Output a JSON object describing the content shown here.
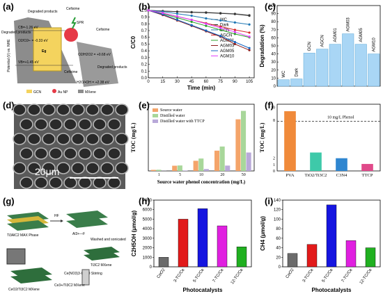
{
  "panels": {
    "a": {
      "letter": "(a)",
      "ylabel": "Potential (V) vs. NHE",
      "labels": [
        "Degraded products",
        "Cefixime",
        "SPR",
        "Cefixime",
        "Degraded products",
        "CB=-1.26 eV",
        "O2/O2•- = -0.33 eV",
        "Eg",
        "VB=+1.45 eV",
        "O2/H2O2 = +0.68 eV",
        "H2O/•OH = +2.38 eV",
        "Cefixime",
        "Degraded products"
      ],
      "legend": [
        "GCN",
        "Au NP",
        "MXene"
      ],
      "colors": {
        "gcn": "#f4d35e",
        "au": "#e63946",
        "mxene": "#9a9a9a"
      }
    },
    "b": {
      "letter": "(b)"
    },
    "c": {
      "letter": "(c)"
    },
    "d": {
      "letter": "(d)",
      "scale": "20μm"
    },
    "e": {
      "letter": "(e)"
    },
    "f": {
      "letter": "(f)",
      "threshold_label": "10 mg/L Phenol"
    },
    "g": {
      "letter": "(g)",
      "labels": [
        "Ti3AlC2 MAX Phase",
        "HF",
        "Al3+—F",
        "Washed and sonicated",
        "Ti3C2 MXene",
        "Ce(NO3)3·6H2O Stirring",
        "Ce3+/Ti3C2 MXene",
        "CeO2/Ti3C2 MXene"
      ]
    },
    "h": {
      "letter": "(h)"
    },
    "i": {
      "letter": "(i)"
    }
  },
  "chart_data": [
    {
      "id": "b",
      "type": "line",
      "xlabel": "Time (min)",
      "ylabel": "C/C0",
      "x": [
        0,
        15,
        30,
        45,
        60,
        75,
        90,
        105
      ],
      "xlim": [
        0,
        110
      ],
      "ylim": [
        0,
        1.05
      ],
      "xticks": [
        0,
        15,
        30,
        45,
        60,
        75,
        90,
        105
      ],
      "yticks": [
        0,
        0.1,
        0.2,
        0.3,
        0.4,
        0.5,
        0.6,
        0.7,
        0.8,
        0.9,
        1.0
      ],
      "legend_position": "top-right",
      "series": [
        {
          "name": "WC",
          "color": "#888888",
          "marker": "square",
          "values": [
            1.0,
            0.99,
            0.98,
            0.975,
            0.97,
            0.96,
            0.95,
            0.93
          ]
        },
        {
          "name": "Dark",
          "color": "#333333",
          "marker": "circle",
          "values": [
            1.0,
            0.99,
            0.98,
            0.97,
            0.965,
            0.955,
            0.945,
            0.92
          ]
        },
        {
          "name": "GCN",
          "color": "#1f77b4",
          "marker": "triangle",
          "values": [
            1.0,
            0.98,
            0.95,
            0.92,
            0.88,
            0.85,
            0.82,
            0.79
          ]
        },
        {
          "name": "AGCN",
          "color": "#d62728",
          "marker": "triangle-down",
          "values": [
            1.0,
            0.96,
            0.91,
            0.86,
            0.81,
            0.76,
            0.71,
            0.67
          ]
        },
        {
          "name": "AGM01",
          "color": "#2ca02c",
          "marker": "diamond",
          "values": [
            1.0,
            0.95,
            0.89,
            0.83,
            0.77,
            0.71,
            0.65,
            0.6
          ]
        },
        {
          "name": "AGM03",
          "color": "#8b1a1a",
          "marker": "circle",
          "values": [
            1.0,
            0.93,
            0.85,
            0.77,
            0.69,
            0.61,
            0.5,
            0.41
          ]
        },
        {
          "name": "AGM05",
          "color": "#1565c0",
          "marker": "diamond",
          "values": [
            1.0,
            0.94,
            0.86,
            0.78,
            0.7,
            0.62,
            0.53,
            0.44
          ]
        },
        {
          "name": "AGM10",
          "color": "#e040fb",
          "marker": "star",
          "values": [
            1.0,
            0.96,
            0.91,
            0.86,
            0.8,
            0.74,
            0.68,
            0.61
          ]
        }
      ]
    },
    {
      "id": "c",
      "type": "bar",
      "ylabel": "Degradation (%)",
      "categories": [
        "WC",
        "Dark",
        "GCN",
        "AGCN",
        "AGM01",
        "AGM03",
        "AGM05",
        "AGM10"
      ],
      "values": [
        8,
        9,
        41,
        46,
        52,
        65,
        52,
        40
      ],
      "ylim": [
        0,
        100
      ],
      "yticks": [
        0,
        10,
        20,
        30,
        40,
        50,
        60,
        70,
        80,
        90,
        100
      ],
      "color": "#a9d6f5",
      "edge": "#5aa7d6"
    },
    {
      "id": "e",
      "type": "bar",
      "xlabel": "Source water phenol concentration (mg/L)",
      "ylabel": "TOC (mg/L)",
      "categories": [
        "1",
        "5",
        "10",
        "20",
        "50"
      ],
      "series": [
        {
          "name": "Source water",
          "color": "#f4a46a",
          "values": [
            0.8,
            3.9,
            7.6,
            15.2,
            38.7
          ]
        },
        {
          "name": "Distilled water",
          "color": "#a8d79a",
          "values": [
            0.9,
            4.1,
            9.3,
            18.3,
            45.0
          ]
        },
        {
          "name": "Distilled water with TTCP",
          "color": "#b9a9d9",
          "values": [
            0.1,
            0.3,
            1.4,
            4.0,
            13.8
          ]
        }
      ],
      "ylim": [
        0,
        50
      ]
    },
    {
      "id": "f",
      "type": "bar",
      "ylabel": "TOC (mg/L)",
      "categories": [
        "PVA",
        "TiO2/Ti3C2",
        "C3N4",
        "TTCP"
      ],
      "values": [
        9.4,
        2.9,
        2.0,
        1.1
      ],
      "colors": [
        "#f08a3a",
        "#3ec9a9",
        "#2f86d0",
        "#e04a8a"
      ],
      "yticks": [
        0,
        1,
        2,
        8,
        10
      ],
      "threshold": 7.8
    },
    {
      "id": "h",
      "type": "bar",
      "xlabel": "Photocatalysts",
      "ylabel": "C2H5OH (μmol/g)",
      "categories": [
        "CeO2",
        "3-TC/Ce",
        "5-TC/Ce",
        "7-TC/Ce",
        "12-TC/Ce"
      ],
      "values": [
        1000,
        5000,
        6100,
        4300,
        2100
      ],
      "colors": [
        "#6b6b6b",
        "#e21a1a",
        "#1515e0",
        "#e020e0",
        "#20b020"
      ],
      "ylim": [
        0,
        7000
      ],
      "yticks": [
        0,
        1000,
        2000,
        3000,
        4000,
        5000,
        6000,
        7000
      ]
    },
    {
      "id": "i",
      "type": "bar",
      "xlabel": "Photocatalysts",
      "ylabel": "CH4 (μmol/g)",
      "categories": [
        "CeO2",
        "3-TC/Ce",
        "5-TC/Ce",
        "7-TC/Ce",
        "12-TC/Ce"
      ],
      "values": [
        28,
        47,
        130,
        55,
        40
      ],
      "colors": [
        "#6b6b6b",
        "#e21a1a",
        "#1515e0",
        "#e020e0",
        "#20b020"
      ],
      "ylim": [
        0,
        140
      ],
      "yticks": [
        0,
        20,
        40,
        60,
        80,
        100,
        120,
        140
      ]
    }
  ]
}
